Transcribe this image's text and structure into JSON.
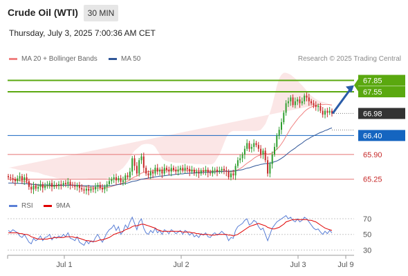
{
  "header": {
    "title": "Crude Oil (WTI)",
    "timeframe": "30 MIN",
    "datetime": "Thursday, July 3, 2025 7:00:36 AM CET"
  },
  "legend": {
    "ma20": "MA 20 + Bollinger Bands",
    "ma50": "MA 50",
    "credit": "Research © 2025 Trading Central"
  },
  "rsi_legend": {
    "rsi": "RSI",
    "ma": "9MA"
  },
  "colors": {
    "up_candle": "#2e9e2e",
    "down_candle": "#c62828",
    "target_green": "#5aa80f",
    "support_blue": "#1565c0",
    "resistance_red": "#e57373",
    "bollinger_fill": "#fbe3e3",
    "ma20": "#f08080",
    "ma50": "#2f5597",
    "current_price_bg": "#333333",
    "arrow": "#2a5ca8"
  },
  "chart_data": [
    {
      "type": "candlestick",
      "title": "Crude Oil (WTI) 30 MIN",
      "x_ticks": [
        "Jul 1",
        "Jul 2",
        "Jul 3",
        "Jul 9"
      ],
      "ylim": [
        64.7,
        68.15
      ],
      "levels": [
        {
          "value": 67.85,
          "label": "67.85",
          "kind": "target"
        },
        {
          "value": 67.55,
          "label": "67.55",
          "kind": "target"
        },
        {
          "value": 66.98,
          "label": "66.98",
          "kind": "current"
        },
        {
          "value": 66.4,
          "label": "66.40",
          "kind": "pivot"
        },
        {
          "value": 65.9,
          "label": "65.90",
          "kind": "support"
        },
        {
          "value": 65.25,
          "label": "65.25",
          "kind": "support"
        }
      ],
      "close": [
        65.3,
        65.28,
        65.25,
        65.2,
        65.27,
        65.33,
        65.22,
        65.3,
        65.2,
        65.05,
        64.98,
        65.08,
        65.0,
        65.05,
        65.12,
        65.02,
        65.08,
        65.1,
        65.15,
        65.05,
        65.1,
        65.08,
        65.12,
        65.1,
        65.15,
        65.12,
        65.18,
        65.1,
        65.08,
        65.05,
        65.1,
        65.02,
        64.98,
        64.95,
        65.0,
        64.95,
        65.0,
        64.98,
        65.05,
        65.1,
        65.02,
        64.98,
        65.05,
        65.12,
        65.2,
        65.25,
        65.3,
        65.22,
        65.28,
        65.18,
        65.22,
        65.35,
        65.3,
        65.45,
        65.8,
        65.6,
        65.4,
        65.75,
        65.85,
        65.55,
        65.4,
        65.35,
        65.45,
        65.4,
        65.55,
        65.45,
        65.5,
        65.4,
        65.55,
        65.5,
        65.45,
        65.55,
        65.5,
        65.45,
        65.5,
        65.55,
        65.48,
        65.55,
        65.52,
        65.45,
        65.5,
        65.42,
        65.45,
        65.4,
        65.48,
        65.45,
        65.5,
        65.42,
        65.4,
        65.48,
        65.5,
        65.45,
        65.48,
        65.52,
        65.48,
        65.45,
        65.3,
        65.4,
        65.35,
        65.6,
        65.75,
        65.8,
        65.9,
        66.05,
        66.2,
        66.05,
        66.1,
        66.2,
        66.15,
        66.05,
        65.9,
        66.0,
        65.75,
        65.4,
        65.65,
        65.9,
        66.1,
        66.4,
        66.55,
        66.75,
        67.0,
        67.25,
        67.3,
        67.4,
        67.2,
        67.3,
        67.35,
        67.25,
        67.3,
        67.45,
        67.4,
        67.3,
        67.25,
        67.2,
        67.15,
        67.18,
        67.05,
        66.95,
        67.05,
        67.0,
        67.05,
        66.98
      ],
      "open": [
        65.33,
        65.3,
        65.28,
        65.25,
        65.2,
        65.27,
        65.33,
        65.22,
        65.3,
        65.2,
        65.05,
        64.98,
        65.08,
        65.0,
        65.05,
        65.12,
        65.02,
        65.08,
        65.1,
        65.15,
        65.05,
        65.1,
        65.08,
        65.12,
        65.1,
        65.15,
        65.12,
        65.18,
        65.1,
        65.08,
        65.05,
        65.1,
        65.02,
        64.98,
        64.95,
        65.0,
        64.95,
        65.0,
        64.98,
        65.05,
        65.1,
        65.02,
        64.98,
        65.05,
        65.12,
        65.2,
        65.25,
        65.3,
        65.22,
        65.28,
        65.18,
        65.22,
        65.35,
        65.3,
        65.45,
        65.8,
        65.6,
        65.4,
        65.75,
        65.85,
        65.55,
        65.4,
        65.35,
        65.45,
        65.4,
        65.55,
        65.45,
        65.5,
        65.4,
        65.55,
        65.5,
        65.45,
        65.55,
        65.5,
        65.45,
        65.5,
        65.55,
        65.48,
        65.55,
        65.52,
        65.45,
        65.5,
        65.42,
        65.45,
        65.4,
        65.48,
        65.45,
        65.5,
        65.42,
        65.4,
        65.48,
        65.5,
        65.45,
        65.48,
        65.52,
        65.48,
        65.45,
        65.3,
        65.4,
        65.35,
        65.6,
        65.75,
        65.8,
        65.9,
        66.05,
        66.2,
        66.05,
        66.1,
        66.2,
        66.15,
        66.05,
        65.9,
        66.0,
        65.75,
        65.4,
        65.65,
        65.9,
        66.1,
        66.4,
        66.55,
        66.75,
        67.0,
        67.25,
        67.3,
        67.4,
        67.2,
        67.3,
        67.35,
        67.25,
        67.3,
        67.45,
        67.4,
        67.3,
        67.25,
        67.2,
        67.15,
        67.18,
        67.05,
        66.95,
        67.05,
        67.0,
        67.05
      ],
      "ma20": [
        65.25,
        65.25,
        65.24,
        65.23,
        65.22,
        65.21,
        65.2,
        65.19,
        65.17,
        65.15,
        65.13,
        65.11,
        65.1,
        65.09,
        65.08,
        65.07,
        65.07,
        65.07,
        65.07,
        65.07,
        65.07,
        65.07,
        65.08,
        65.08,
        65.09,
        65.09,
        65.1,
        65.1,
        65.1,
        65.09,
        65.09,
        65.08,
        65.07,
        65.06,
        65.05,
        65.04,
        65.03,
        65.02,
        65.02,
        65.02,
        65.02,
        65.02,
        65.02,
        65.03,
        65.04,
        65.06,
        65.08,
        65.1,
        65.12,
        65.13,
        65.15,
        65.18,
        65.2,
        65.23,
        65.28,
        65.31,
        65.33,
        65.37,
        65.41,
        65.43,
        65.44,
        65.45,
        65.46,
        65.47,
        65.48,
        65.48,
        65.49,
        65.49,
        65.49,
        65.49,
        65.49,
        65.49,
        65.49,
        65.49,
        65.49,
        65.5,
        65.49,
        65.49,
        65.49,
        65.49,
        65.48,
        65.48,
        65.47,
        65.47,
        65.47,
        65.47,
        65.47,
        65.47,
        65.46,
        65.46,
        65.46,
        65.46,
        65.46,
        65.46,
        65.46,
        65.46,
        65.45,
        65.45,
        65.45,
        65.47,
        65.5,
        65.53,
        65.57,
        65.62,
        65.67,
        65.71,
        65.75,
        65.8,
        65.84,
        65.87,
        65.89,
        65.92,
        65.93,
        65.91,
        65.92,
        65.94,
        65.98,
        66.04,
        66.1,
        66.18,
        66.27,
        66.38,
        66.48,
        66.59,
        66.67,
        66.75,
        66.83,
        66.9,
        66.96,
        67.03,
        67.08,
        67.12,
        67.15,
        67.17,
        67.19,
        67.21,
        67.22,
        67.21,
        67.22,
        67.22,
        67.21,
        67.2
      ],
      "ma50": [
        65.15,
        65.15,
        65.15,
        65.14,
        65.14,
        65.14,
        65.14,
        65.13,
        65.13,
        65.12,
        65.12,
        65.11,
        65.11,
        65.1,
        65.1,
        65.1,
        65.1,
        65.1,
        65.09,
        65.09,
        65.09,
        65.09,
        65.09,
        65.09,
        65.09,
        65.09,
        65.09,
        65.09,
        65.09,
        65.09,
        65.09,
        65.08,
        65.08,
        65.08,
        65.08,
        65.08,
        65.07,
        65.07,
        65.07,
        65.07,
        65.07,
        65.07,
        65.07,
        65.07,
        65.08,
        65.08,
        65.09,
        65.1,
        65.11,
        65.12,
        65.13,
        65.14,
        65.15,
        65.17,
        65.19,
        65.2,
        65.21,
        65.23,
        65.25,
        65.26,
        65.27,
        65.28,
        65.29,
        65.3,
        65.31,
        65.32,
        65.33,
        65.33,
        65.34,
        65.35,
        65.36,
        65.36,
        65.37,
        65.38,
        65.38,
        65.39,
        65.39,
        65.4,
        65.4,
        65.41,
        65.41,
        65.41,
        65.42,
        65.42,
        65.42,
        65.43,
        65.43,
        65.43,
        65.44,
        65.44,
        65.44,
        65.45,
        65.45,
        65.45,
        65.46,
        65.46,
        65.46,
        65.46,
        65.47,
        65.47,
        65.48,
        65.49,
        65.5,
        65.52,
        65.54,
        65.55,
        65.57,
        65.59,
        65.61,
        65.62,
        65.64,
        65.65,
        65.66,
        65.66,
        65.67,
        65.69,
        65.71,
        65.73,
        65.76,
        65.8,
        65.84,
        65.89,
        65.94,
        65.99,
        66.03,
        66.07,
        66.12,
        66.16,
        66.2,
        66.25,
        66.29,
        66.32,
        66.36,
        66.39,
        66.42,
        66.45,
        66.48,
        66.5,
        66.53,
        66.55,
        66.58,
        66.6
      ],
      "bb_upper": [
        65.55,
        65.55,
        65.53,
        65.52,
        65.5,
        65.49,
        65.48,
        65.48,
        65.47,
        65.46,
        65.45,
        65.44,
        65.43,
        65.42,
        65.4,
        65.38,
        65.36,
        65.35,
        65.33,
        65.32,
        65.3,
        65.28,
        65.27,
        65.26,
        65.25,
        65.25,
        65.26,
        65.27,
        65.27,
        65.27,
        65.27,
        65.27,
        65.27,
        65.27,
        65.27,
        65.26,
        65.26,
        65.25,
        65.25,
        65.25,
        65.25,
        65.25,
        65.25,
        65.27,
        65.3,
        65.34,
        65.38,
        65.42,
        65.46,
        65.5,
        65.55,
        65.62,
        65.7,
        65.8,
        65.92,
        66.0,
        66.05,
        66.1,
        66.15,
        66.17,
        66.18,
        66.18,
        66.17,
        66.15,
        66.1,
        66.0,
        65.9,
        65.8,
        65.75,
        65.73,
        65.71,
        65.7,
        65.69,
        65.68,
        65.68,
        65.68,
        65.67,
        65.67,
        65.66,
        65.66,
        65.66,
        65.65,
        65.65,
        65.65,
        65.65,
        65.64,
        65.64,
        65.64,
        65.64,
        65.65,
        65.7,
        65.8,
        65.9,
        66.05,
        66.2,
        66.35,
        66.45,
        66.5,
        66.52,
        66.52,
        66.52,
        66.52,
        66.52,
        66.52,
        66.52,
        66.52,
        66.52,
        66.52,
        66.52,
        66.53,
        66.55,
        66.62,
        66.7,
        66.85,
        67.0,
        67.2,
        67.45,
        67.7,
        67.9,
        68.0,
        68.05,
        68.05,
        68.03,
        68.0,
        67.95,
        67.9,
        67.85,
        67.78,
        67.72,
        67.65,
        67.58,
        67.52,
        67.45,
        67.4,
        67.36,
        67.33,
        67.3,
        67.28,
        67.27,
        67.26
      ],
      "bb_lower": [
        64.98,
        64.98,
        64.97,
        64.96,
        64.95,
        64.94,
        64.93,
        64.92,
        64.92,
        64.91,
        64.9,
        64.9,
        64.89,
        64.88,
        64.88,
        64.87,
        64.86,
        64.86,
        64.86,
        64.86,
        64.86,
        64.87,
        64.88,
        64.89,
        64.9,
        64.9,
        64.9,
        64.9,
        64.9,
        64.89,
        64.88,
        64.87,
        64.86,
        64.85,
        64.84,
        64.83,
        64.82,
        64.82,
        64.82,
        64.82,
        64.83,
        64.84,
        64.85,
        64.86,
        64.88,
        64.9,
        64.92,
        64.94,
        64.96,
        64.98,
        65.0,
        65.02,
        65.05,
        65.08,
        65.1,
        65.12,
        65.13,
        65.14,
        65.14,
        65.15,
        65.15,
        65.15,
        65.15,
        65.16,
        65.18,
        65.2,
        65.22,
        65.24,
        65.26,
        65.28,
        65.29,
        65.3,
        65.31,
        65.32,
        65.33,
        65.33,
        65.34,
        65.34,
        65.35,
        65.35,
        65.35,
        65.35,
        65.35,
        65.35,
        65.35,
        65.35,
        65.35,
        65.34,
        65.33,
        65.32,
        65.31,
        65.3,
        65.29,
        65.28,
        65.27,
        65.26,
        65.25,
        65.24,
        65.24,
        65.24,
        65.25,
        65.26,
        65.27,
        65.28,
        65.28,
        65.28,
        65.28,
        65.28,
        65.29,
        65.3,
        65.3,
        65.3,
        65.3,
        65.3,
        65.32,
        65.35,
        65.4,
        65.48,
        65.6,
        65.75,
        65.9,
        66.05,
        66.2,
        66.35,
        66.48,
        66.6,
        66.7,
        66.78,
        66.85,
        66.9,
        66.94,
        66.97,
        67.0,
        67.02,
        67.04,
        67.06,
        67.08,
        67.1,
        67.12,
        67.14
      ]
    },
    {
      "type": "line",
      "title": "RSI",
      "ylim": [
        25,
        78
      ],
      "y_ticks": [
        70,
        50,
        30
      ],
      "series": [
        {
          "name": "RSI",
          "values": [
            55,
            53,
            56,
            54,
            52,
            48,
            46,
            50,
            45,
            40,
            38,
            45,
            42,
            44,
            48,
            42,
            46,
            47,
            50,
            43,
            47,
            45,
            48,
            46,
            50,
            47,
            52,
            45,
            44,
            42,
            47,
            40,
            38,
            36,
            42,
            38,
            42,
            40,
            46,
            50,
            44,
            40,
            46,
            52,
            56,
            58,
            62,
            55,
            60,
            50,
            54,
            62,
            58,
            66,
            72,
            64,
            56,
            66,
            70,
            58,
            52,
            50,
            55,
            52,
            58,
            52,
            55,
            50,
            56,
            54,
            51,
            56,
            54,
            51,
            53,
            55,
            50,
            55,
            53,
            49,
            52,
            47,
            49,
            46,
            51,
            49,
            52,
            47,
            46,
            50,
            52,
            49,
            51,
            54,
            51,
            49,
            42,
            46,
            45,
            55,
            60,
            62,
            64,
            68,
            70,
            62,
            64,
            68,
            66,
            60,
            56,
            58,
            50,
            42,
            50,
            58,
            62,
            66,
            68,
            70,
            72,
            74,
            70,
            72,
            68,
            66,
            70,
            66,
            68,
            72,
            70,
            66,
            62,
            58,
            56,
            57,
            53,
            50,
            54,
            51,
            55,
            52
          ]
        },
        {
          "name": "9MA",
          "values": [
            52,
            52,
            52,
            52,
            52,
            51,
            51,
            50,
            50,
            49,
            47,
            46,
            45,
            44,
            44,
            44,
            44,
            44,
            45,
            45,
            46,
            46,
            46,
            46,
            46,
            47,
            47,
            47,
            47,
            46,
            46,
            45,
            44,
            43,
            42,
            42,
            41,
            41,
            41,
            42,
            43,
            43,
            44,
            45,
            46,
            48,
            50,
            51,
            52,
            53,
            54,
            56,
            57,
            58,
            60,
            61,
            61,
            62,
            63,
            63,
            62,
            61,
            60,
            59,
            58,
            56,
            55,
            54,
            54,
            54,
            54,
            54,
            54,
            54,
            54,
            54,
            53,
            53,
            53,
            53,
            52,
            52,
            51,
            51,
            50,
            50,
            50,
            50,
            49,
            49,
            49,
            50,
            50,
            50,
            50,
            50,
            49,
            49,
            48,
            49,
            50,
            52,
            54,
            56,
            58,
            60,
            61,
            62,
            63,
            64,
            63,
            62,
            61,
            59,
            58,
            57,
            57,
            58,
            59,
            61,
            63,
            66,
            67,
            68,
            69,
            69,
            69,
            69,
            69,
            69,
            69,
            68,
            68,
            67,
            66,
            64,
            62,
            60,
            58,
            57,
            56,
            55
          ]
        }
      ]
    }
  ]
}
